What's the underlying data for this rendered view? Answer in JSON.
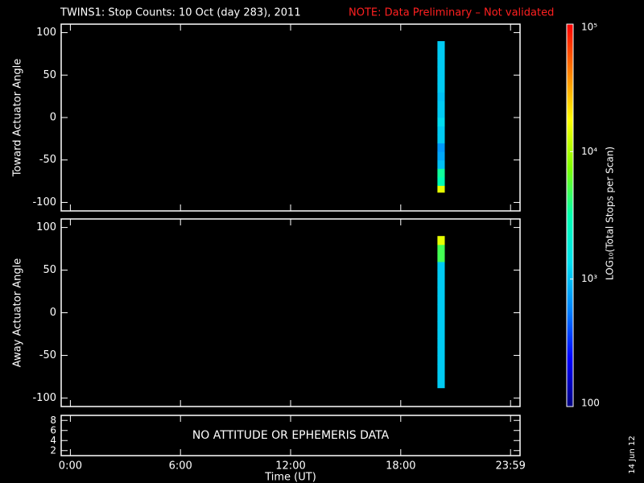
{
  "title": "TWINS1: Stop Counts: 10 Oct (day 283), 2011",
  "note": "NOTE: Data Preliminary – Not validated",
  "date_stamp": "14 Jun 12",
  "colorbar": {
    "title": "LOG₁₀(Total Stops per Scan)",
    "log": true,
    "lim": [
      100,
      100000
    ],
    "ticks": [
      100,
      {
        "value": 1000,
        "label": "10³"
      },
      {
        "value": 10000,
        "label": "10⁴"
      },
      {
        "value": 100000,
        "label": "10⁵"
      }
    ],
    "colormap": [
      "#000080",
      "#0000ff",
      "#0080ff",
      "#00e0f0",
      "#00ffb0",
      "#80ff00",
      "#ffff00",
      "#ff8000",
      "#ff0000"
    ]
  },
  "chart_data": [
    {
      "type": "heatmap",
      "ylabel": "Toward Actuator Angle",
      "xlim": [
        -0.5,
        24.5
      ],
      "ylim": [
        -110,
        110
      ],
      "yticks": [
        -100,
        -50,
        0,
        50,
        100
      ],
      "x_bins": [
        20.0,
        20.4
      ],
      "y_bins": [
        -88,
        -80,
        -70,
        -60,
        -50,
        -40,
        -30,
        -20,
        -10,
        0,
        10,
        20,
        30,
        40,
        50,
        60,
        70,
        80,
        90
      ],
      "values": [
        15000,
        3000,
        3500,
        1000,
        800,
        700,
        1100,
        1100,
        1300,
        1100,
        1100,
        1000,
        1100,
        1100,
        1100,
        1100,
        1100,
        1100
      ]
    },
    {
      "type": "heatmap",
      "ylabel": "Away Actuator Angle",
      "xlim": [
        -0.5,
        24.5
      ],
      "ylim": [
        -110,
        110
      ],
      "yticks": [
        -100,
        -50,
        0,
        50,
        100
      ],
      "x_bins": [
        20.0,
        20.4
      ],
      "y_bins": [
        -88,
        -80,
        -70,
        -60,
        -50,
        -40,
        -30,
        -20,
        -10,
        0,
        10,
        20,
        30,
        40,
        50,
        60,
        70,
        80,
        90
      ],
      "values": [
        1100,
        1100,
        1100,
        1100,
        1100,
        1100,
        1100,
        1100,
        1100,
        1100,
        1100,
        1100,
        1100,
        1100,
        1100,
        5000,
        5000,
        15000
      ]
    },
    {
      "type": "empty",
      "annotation": "NO ATTITUDE OR EPHEMERIS DATA",
      "xlabel": "Time (UT)",
      "xlim": [
        -0.5,
        24.5
      ],
      "ylim": [
        1,
        9
      ],
      "yticks": [
        2,
        4,
        6,
        8
      ],
      "xticks": [
        {
          "value": 0,
          "label": "0:00"
        },
        {
          "value": 6,
          "label": "6:00"
        },
        {
          "value": 12,
          "label": "12:00"
        },
        {
          "value": 18,
          "label": "18:00"
        },
        {
          "value": 23.983,
          "label": "23:59"
        }
      ]
    }
  ]
}
